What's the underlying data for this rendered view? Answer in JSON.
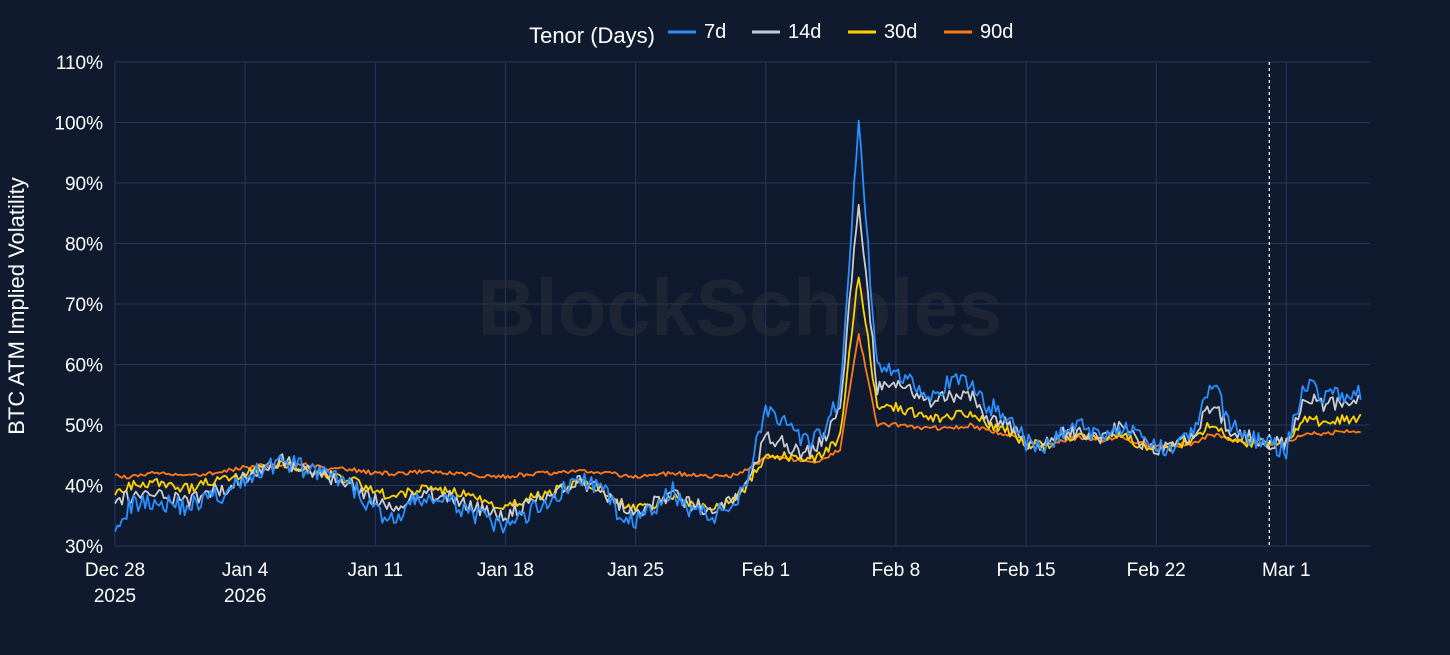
{
  "chart_data": {
    "type": "line",
    "title": "",
    "xlabel": "",
    "ylabel": "BTC ATM Implied Volatility",
    "legend_title": "Tenor (Days)",
    "legend_position": "top-center",
    "grid": true,
    "ylim": [
      30,
      110
    ],
    "y_ticks": [
      30,
      40,
      50,
      60,
      70,
      80,
      90,
      100,
      110
    ],
    "y_tick_labels": [
      "30%",
      "40%",
      "50%",
      "60%",
      "70%",
      "80%",
      "90%",
      "100%",
      "110%"
    ],
    "xlim": [
      "2025-12-28",
      "2026-03-05 12:00"
    ],
    "x_ticks": [
      {
        "date": "2025-12-28",
        "label": "Dec 28",
        "sublabel": "2025"
      },
      {
        "date": "2026-01-04",
        "label": "Jan 4",
        "sublabel": "2026"
      },
      {
        "date": "2026-01-11",
        "label": "Jan 11",
        "sublabel": ""
      },
      {
        "date": "2026-01-18",
        "label": "Jan 18",
        "sublabel": ""
      },
      {
        "date": "2026-01-25",
        "label": "Jan 25",
        "sublabel": ""
      },
      {
        "date": "2026-02-01",
        "label": "Feb 1",
        "sublabel": ""
      },
      {
        "date": "2026-02-08",
        "label": "Feb 8",
        "sublabel": ""
      },
      {
        "date": "2026-02-15",
        "label": "Feb 15",
        "sublabel": ""
      },
      {
        "date": "2026-02-22",
        "label": "Feb 22",
        "sublabel": ""
      },
      {
        "date": "2026-03-01",
        "label": "Mar 1",
        "sublabel": ""
      }
    ],
    "vline": "2026-02-28 02:00",
    "x": [
      "2025-12-28",
      "2025-12-29",
      "2025-12-30",
      "2025-12-31",
      "2026-01-01",
      "2026-01-02",
      "2026-01-03",
      "2026-01-04",
      "2026-01-05",
      "2026-01-06",
      "2026-01-07",
      "2026-01-08",
      "2026-01-09",
      "2026-01-10",
      "2026-01-11",
      "2026-01-12",
      "2026-01-13",
      "2026-01-14",
      "2026-01-15",
      "2026-01-16",
      "2026-01-17",
      "2026-01-18",
      "2026-01-19",
      "2026-01-20",
      "2026-01-21",
      "2026-01-22",
      "2026-01-23",
      "2026-01-24",
      "2026-01-25",
      "2026-01-26",
      "2026-01-27",
      "2026-01-28",
      "2026-01-29",
      "2026-01-30",
      "2026-01-31",
      "2026-02-01",
      "2026-02-02",
      "2026-02-03",
      "2026-02-04",
      "2026-02-05",
      "2026-02-06",
      "2026-02-07",
      "2026-02-08",
      "2026-02-09",
      "2026-02-10",
      "2026-02-11",
      "2026-02-12",
      "2026-02-13",
      "2026-02-14",
      "2026-02-15",
      "2026-02-16",
      "2026-02-17",
      "2026-02-18",
      "2026-02-19",
      "2026-02-20",
      "2026-02-21",
      "2026-02-22",
      "2026-02-23",
      "2026-02-24",
      "2026-02-25",
      "2026-02-26",
      "2026-02-27",
      "2026-02-28",
      "2026-03-01",
      "2026-03-02",
      "2026-03-03",
      "2026-03-04",
      "2026-03-05"
    ],
    "series": [
      {
        "name": "7d",
        "color": "#2b8fff",
        "values": [
          34,
          37,
          37.5,
          37,
          36.5,
          38,
          38.5,
          41,
          43,
          44,
          43,
          42,
          41,
          39,
          36,
          34,
          37,
          38,
          37,
          36,
          34,
          33,
          35,
          37,
          39,
          41,
          40,
          36,
          34,
          36,
          39,
          36,
          35,
          36,
          41,
          53,
          50,
          47,
          48,
          55,
          100,
          59,
          59,
          57,
          55,
          57,
          57,
          53,
          52,
          47,
          46,
          49,
          50,
          48,
          50,
          48,
          46,
          47,
          49,
          57,
          50,
          48,
          47,
          46,
          57,
          55,
          55,
          55
        ]
      },
      {
        "name": "14d",
        "color": "#c9ccd2",
        "values": [
          37,
          38.5,
          38.5,
          38,
          37.5,
          39,
          39.5,
          41.5,
          43,
          44,
          43,
          42,
          41,
          39.5,
          37.5,
          36,
          38,
          38.5,
          38,
          37,
          35.5,
          35,
          36.5,
          38,
          39.5,
          40.5,
          39.5,
          37,
          35.5,
          37,
          38.5,
          37,
          36,
          37,
          40.5,
          48,
          47,
          45,
          47,
          52,
          87,
          56,
          57,
          55,
          54,
          55,
          55,
          51,
          50,
          47,
          46.5,
          48.5,
          49,
          48,
          49.5,
          47.5,
          46,
          47,
          48.5,
          53.5,
          49,
          48,
          47,
          47,
          55,
          53,
          54,
          54
        ]
      },
      {
        "name": "30d",
        "color": "#ffd400",
        "values": [
          39,
          40,
          40.5,
          40,
          39.5,
          40.5,
          41,
          42,
          43,
          43.5,
          43,
          42,
          41.5,
          40.5,
          39,
          38,
          39,
          39.5,
          39,
          38.5,
          37,
          36.5,
          37.5,
          38.5,
          39.5,
          40.5,
          39.5,
          37.5,
          36,
          37,
          38,
          37,
          36.5,
          37,
          40,
          45,
          45,
          44,
          45,
          48,
          75,
          53,
          53,
          52,
          51,
          51.5,
          52,
          50,
          49,
          47,
          46.5,
          48,
          48.5,
          48,
          48.5,
          47,
          46,
          46.5,
          47.5,
          50.5,
          48,
          47,
          47,
          47,
          51,
          50.5,
          51,
          51
        ]
      },
      {
        "name": "90d",
        "color": "#ff7a1a",
        "values": [
          41.5,
          41.5,
          42,
          41.8,
          41.8,
          42,
          42.5,
          43,
          43.2,
          43.5,
          43.5,
          43,
          42.8,
          42.5,
          42,
          42,
          42.2,
          42.2,
          42,
          41.8,
          41.5,
          41.5,
          41.8,
          42,
          42.3,
          42.5,
          42.3,
          41.8,
          41.5,
          41.8,
          42,
          41.8,
          41.5,
          41.5,
          42.5,
          44.5,
          44.5,
          44,
          44,
          46,
          65,
          50,
          50,
          49.5,
          49.5,
          49.5,
          50,
          49,
          48.5,
          47,
          46.5,
          47.5,
          48,
          47.5,
          48,
          47,
          46.5,
          46.5,
          47,
          48.5,
          47.5,
          47,
          47,
          47,
          48.5,
          48.5,
          49,
          49
        ]
      }
    ]
  },
  "watermark": "BlockScholes"
}
